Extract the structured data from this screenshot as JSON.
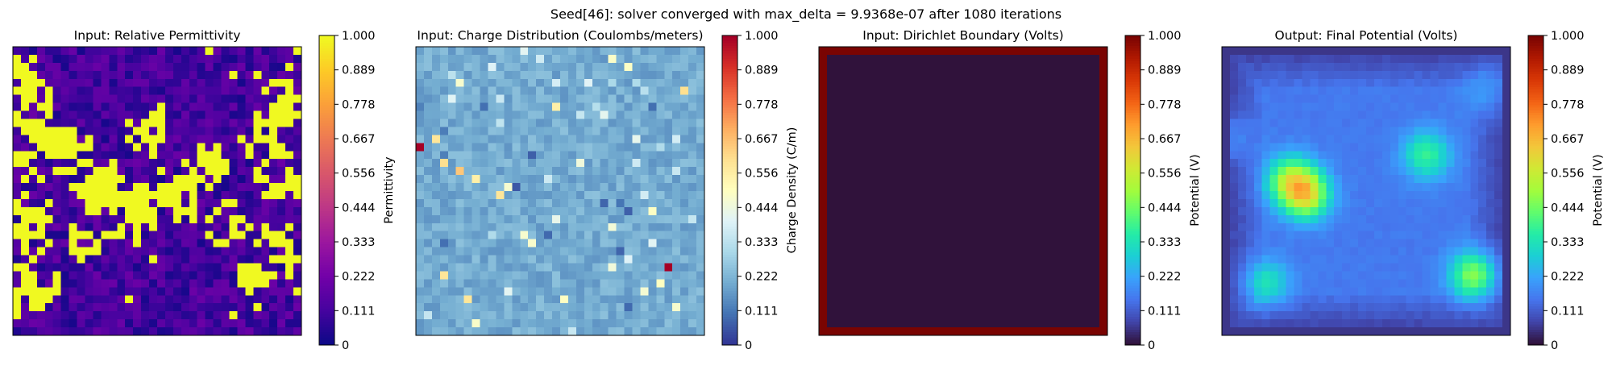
{
  "suptitle": "Seed[46]: solver converged with max_delta = 9.9368e-07 after 1080 iterations",
  "chart_data": [
    {
      "type": "heatmap",
      "title": "Input: Relative Permittivity",
      "colormap": "plasma",
      "colorbar_label": "Permittivity",
      "grid_size": [
        36,
        36
      ],
      "vmin": 0,
      "vmax": 1,
      "ticks": [
        "0",
        "0.111",
        "0.222",
        "0.333",
        "0.444",
        "0.556",
        "0.667",
        "0.778",
        "0.889",
        "1.000"
      ],
      "pattern": "binary high/low permittivity regions (bright clusters on dark background)"
    },
    {
      "type": "heatmap",
      "title": "Input: Charge Distribution (Coulombs/meters)",
      "colormap": "RdYlBu_r",
      "colorbar_label": "Charge Density (C/m)",
      "grid_size": [
        36,
        36
      ],
      "vmin": 0,
      "vmax": 1,
      "ticks": [
        "0",
        "0.111",
        "0.222",
        "0.333",
        "0.444",
        "0.556",
        "0.667",
        "0.778",
        "0.889",
        "1.000"
      ],
      "background_value": 0.2,
      "hotspots": [
        {
          "row": 12,
          "col": 0,
          "value": 1.0
        },
        {
          "row": 27,
          "col": 31,
          "value": 1.0
        },
        {
          "row": 5,
          "col": 33,
          "value": 0.6
        },
        {
          "row": 7,
          "col": 17,
          "value": 0.55
        },
        {
          "row": 11,
          "col": 2,
          "value": 0.58
        },
        {
          "row": 14,
          "col": 3,
          "value": 0.6
        },
        {
          "row": 16,
          "col": 7,
          "value": 0.55
        },
        {
          "row": 28,
          "col": 3,
          "value": 0.58
        },
        {
          "row": 31,
          "col": 6,
          "value": 0.58
        },
        {
          "row": 18,
          "col": 10,
          "value": 0.58
        },
        {
          "row": 15,
          "col": 5,
          "value": 0.65
        }
      ]
    },
    {
      "type": "heatmap",
      "title": "Input: Dirichlet Boundary (Volts)",
      "colormap": "turbo",
      "colorbar_label": "Potential (V)",
      "grid_size": [
        36,
        36
      ],
      "vmin": 0,
      "vmax": 1,
      "ticks": [
        "0",
        "0.111",
        "0.222",
        "0.333",
        "0.444",
        "0.556",
        "0.667",
        "0.778",
        "0.889",
        "1.000"
      ],
      "boundary_value": 1.0,
      "interior_value": 0.0
    },
    {
      "type": "heatmap",
      "title": "Output: Final Potential (Volts)",
      "colormap": "turbo",
      "colorbar_label": "Potential (V)",
      "grid_size": [
        36,
        36
      ],
      "vmin": 0,
      "vmax": 1,
      "ticks": [
        "0",
        "0.111",
        "0.222",
        "0.333",
        "0.444",
        "0.556",
        "0.667",
        "0.778",
        "0.889",
        "1.000"
      ],
      "peaks": [
        {
          "row": 18,
          "col": 10,
          "value": 0.52
        },
        {
          "row": 16,
          "col": 8,
          "value": 0.42
        },
        {
          "row": 28,
          "col": 31,
          "value": 0.45
        },
        {
          "row": 13,
          "col": 25,
          "value": 0.35
        },
        {
          "row": 29,
          "col": 5,
          "value": 0.3
        },
        {
          "row": 5,
          "col": 33,
          "value": 0.22
        },
        {
          "row": 11,
          "col": 0,
          "value": 0.22
        }
      ]
    }
  ]
}
